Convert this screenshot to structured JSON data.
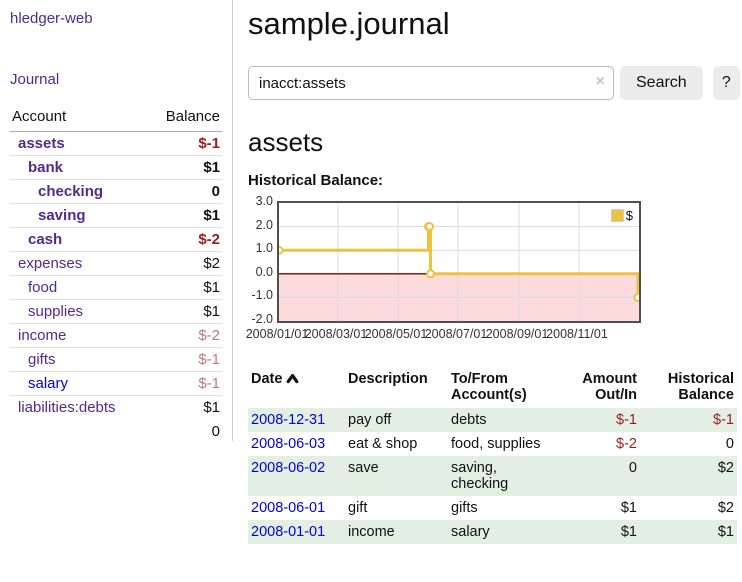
{
  "sidebar": {
    "brand": "hledger-web",
    "journal_link": "Journal",
    "accounts": {
      "header_account": "Account",
      "header_balance": "Balance",
      "rows": [
        {
          "name": "assets",
          "indent": 0,
          "bold": true,
          "link_tone": "purple",
          "balance": "$-1",
          "balance_tone": "neg-strong"
        },
        {
          "name": "bank",
          "indent": 1,
          "bold": true,
          "link_tone": "purple",
          "balance": "$1",
          "balance_tone": "normal"
        },
        {
          "name": "checking",
          "indent": 2,
          "bold": true,
          "link_tone": "purple",
          "balance": "0",
          "balance_tone": "normal"
        },
        {
          "name": "saving",
          "indent": 2,
          "bold": true,
          "link_tone": "purple",
          "balance": "$1",
          "balance_tone": "normal"
        },
        {
          "name": "cash",
          "indent": 1,
          "bold": true,
          "link_tone": "purple",
          "balance": "$-2",
          "balance_tone": "neg-strong"
        },
        {
          "name": "expenses",
          "indent": 0,
          "bold": false,
          "link_tone": "purple",
          "balance": "$2",
          "balance_tone": "normal"
        },
        {
          "name": "food",
          "indent": 1,
          "bold": false,
          "link_tone": "purple",
          "balance": "$1",
          "balance_tone": "normal"
        },
        {
          "name": "supplies",
          "indent": 1,
          "bold": false,
          "link_tone": "purple",
          "balance": "$1",
          "balance_tone": "normal"
        },
        {
          "name": "income",
          "indent": 0,
          "bold": false,
          "link_tone": "purple",
          "balance": "$-2",
          "balance_tone": "neg-soft"
        },
        {
          "name": "gifts",
          "indent": 1,
          "bold": false,
          "link_tone": "purple",
          "balance": "$-1",
          "balance_tone": "neg-soft"
        },
        {
          "name": "salary",
          "indent": 1,
          "bold": false,
          "link_tone": "blue",
          "balance": "$-1",
          "balance_tone": "neg-soft"
        },
        {
          "name": "liabilities:debts",
          "indent": 0,
          "bold": false,
          "link_tone": "purple",
          "balance": "$1",
          "balance_tone": "normal"
        }
      ],
      "total": "0"
    }
  },
  "main": {
    "title": "sample.journal",
    "search": {
      "value": "inacct:assets",
      "clear_icon": "×",
      "search_button": "Search",
      "help_button": "?"
    },
    "account_heading": "assets",
    "chart_title": "Historical Balance:"
  },
  "chart_data": {
    "type": "line",
    "step": true,
    "title": "Historical Balance",
    "series": [
      {
        "name": "$",
        "color": "#EDC240",
        "points": [
          [
            "2008-01-01",
            1
          ],
          [
            "2008-06-01",
            2
          ],
          [
            "2008-06-02",
            2
          ],
          [
            "2008-06-03",
            0
          ],
          [
            "2008-12-31",
            -1
          ]
        ]
      }
    ],
    "x_range": [
      "2008-01-01",
      "2009-01-01"
    ],
    "ylim": [
      -2,
      3
    ],
    "yticks": [
      "3.0",
      "2.0",
      "1.0",
      "0.0",
      "-1.0",
      "-2.0"
    ],
    "xticks": [
      {
        "date": "2008-01-01",
        "label": "2008/01/01"
      },
      {
        "date": "2008-03-01",
        "label": "2008/03/01"
      },
      {
        "date": "2008-05-01",
        "label": "2008/05/01"
      },
      {
        "date": "2008-07-01",
        "label": "2008/07/01"
      },
      {
        "date": "2008-09-01",
        "label": "2008/09/01"
      },
      {
        "date": "2008-11-01",
        "label": "2008/11/01"
      }
    ],
    "legend_position": "top-right",
    "grid": true,
    "negative_region_color": "#fbdbdb",
    "zero_line_color": "#8b0000",
    "grid_color": "#dcdcdc",
    "border_color": "#4f4f4f"
  },
  "register": {
    "headers": {
      "date": "Date",
      "description": "Description",
      "accounts": "To/From Account(s)",
      "amount": "Amount Out/In",
      "balance": "Historical Balance"
    },
    "rows": [
      {
        "date": "2008-12-31",
        "description": "pay off",
        "accounts": "debts",
        "amount": "$-1",
        "balance": "$-1"
      },
      {
        "date": "2008-06-03",
        "description": "eat & shop",
        "accounts": "food, supplies",
        "amount": "$-2",
        "balance": "0"
      },
      {
        "date": "2008-06-02",
        "description": "save",
        "accounts": "saving,\nchecking",
        "amount": "0",
        "balance": "$2"
      },
      {
        "date": "2008-06-01",
        "description": "gift",
        "accounts": "gifts",
        "amount": "$1",
        "balance": "$2"
      },
      {
        "date": "2008-01-01",
        "description": "income",
        "accounts": "salary",
        "amount": "$1",
        "balance": "$1"
      }
    ]
  }
}
